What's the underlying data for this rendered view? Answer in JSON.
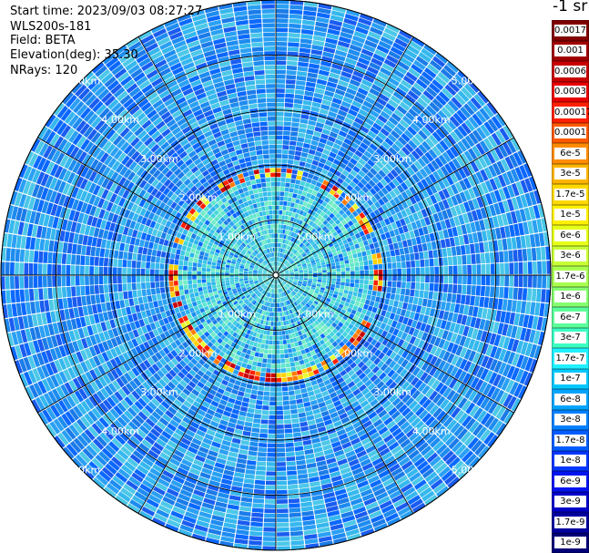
{
  "header": {
    "start_time": "Start time: 2023/09/03 08:27:27",
    "instrument": "WLS200s-181",
    "field": "Field: BETA",
    "elevation": "Elevation(deg): 35.30",
    "nrays": "NRays: 120"
  },
  "colorbar": {
    "unit": "-1 sr",
    "labels": [
      "0.0017",
      "0.001",
      "0.0006",
      "0.0003",
      "0.00017",
      "0.0001",
      "6e-5",
      "3e-5",
      "1.7e-5",
      "1e-5",
      "6e-6",
      "3e-6",
      "1.7e-6",
      "1e-6",
      "6e-7",
      "3e-7",
      "1.7e-7",
      "1e-7",
      "6e-8",
      "3e-8",
      "1.7e-8",
      "1e-8",
      "6e-9",
      "3e-9",
      "1.7e-9",
      "1e-9"
    ],
    "colors": [
      "#800000",
      "#a00000",
      "#c80000",
      "#e80000",
      "#ff2000",
      "#ff5a00",
      "#ff8c00",
      "#ffb400",
      "#ffd800",
      "#fff000",
      "#e6ff1a",
      "#c8ff36",
      "#a8ff4e",
      "#86ff70",
      "#5cff9a",
      "#3cffc2",
      "#20f0ff",
      "#00c8ff",
      "#00a4ff",
      "#0080ff",
      "#005cff",
      "#0036ff",
      "#0014f0",
      "#0000c8",
      "#0000a0",
      "#000078"
    ]
  },
  "chart_data": {
    "type": "heatmap",
    "projection": "polar PPI scan",
    "field": "BETA",
    "nrays": 120,
    "elevation_deg": 35.3,
    "range_ring_labels": [
      "1.00km",
      "2.00km",
      "3.00km",
      "4.00km",
      "5.00km"
    ],
    "range_rings_km": [
      1,
      2,
      3,
      4,
      5
    ],
    "range_max_km": 5.0,
    "background_level": "6e-8 to 1.7e-7",
    "high_backscatter_ring_km": 1.8,
    "high_backscatter_level": "1e-5 to 0.0001",
    "color_scale": "log10, 1e-9 to 0.0017"
  }
}
